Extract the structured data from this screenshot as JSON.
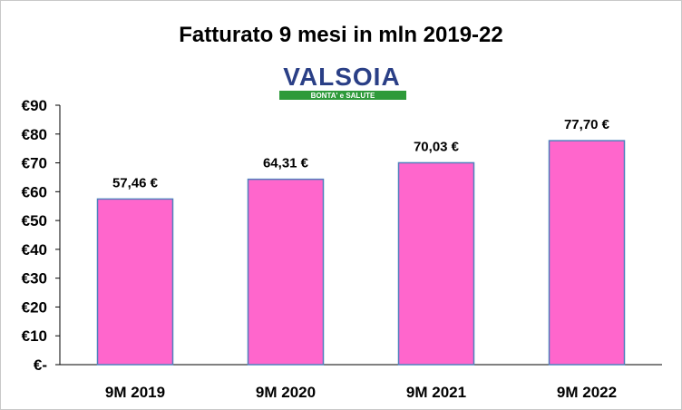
{
  "chart_data": {
    "type": "bar",
    "title": "Fatturato  9 mesi in mln 2019-22",
    "categories": [
      "9M 2019",
      "9M 2020",
      "9M 2021",
      "9M 2022"
    ],
    "values": [
      57.46,
      64.31,
      70.03,
      77.7
    ],
    "data_labels": [
      "57,46 €",
      "64,31 €",
      "70,03 €",
      "77,70 €"
    ],
    "y_tick_labels": [
      "€-",
      "€10",
      "€20",
      "€30",
      "€40",
      "€50",
      "€60",
      "€70",
      "€80",
      "€90"
    ],
    "ylim": [
      0,
      90
    ],
    "grid": false,
    "legend": "none",
    "bar_color": "#ff66cc",
    "bar_border_color": "#4f81bd"
  },
  "logo": {
    "name": "VALSOIA",
    "tagline": "BONTA' e SALUTE",
    "color_text": "#2a3f86",
    "color_band": "#2e9a3a"
  }
}
